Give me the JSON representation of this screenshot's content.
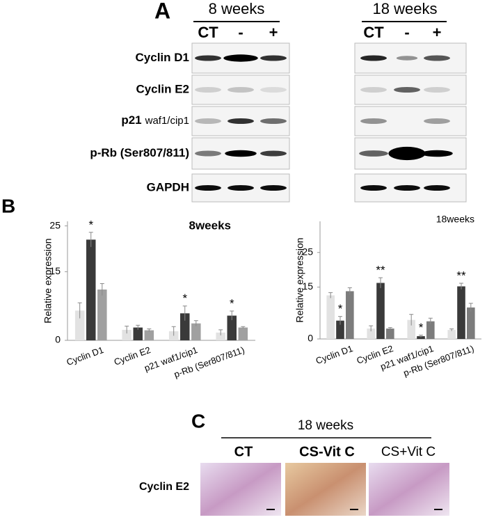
{
  "panel_a": {
    "label": "A",
    "groups": [
      "8 weeks",
      "18 weeks"
    ],
    "lanes": [
      "CT",
      "-",
      "+",
      "CT",
      "-",
      "+"
    ],
    "rows": [
      {
        "label": "Cyclin D1"
      },
      {
        "label": "Cyclin E2"
      },
      {
        "label": "p21",
        "sub": "waf1/cip1"
      },
      {
        "label": "p-Rb (Ser807/811)"
      },
      {
        "label": "GAPDH"
      }
    ]
  },
  "panel_b_label": "B",
  "chart_data": [
    {
      "type": "bar",
      "title": "8weeks",
      "y_label": "Relative expression",
      "categories": [
        "Cyclin D1",
        "Cyclin E2",
        "p21 waf1/cip1",
        "p-Rb (Ser807/811)"
      ],
      "series": [
        {
          "color": "#e2e2e2",
          "values": [
            6.5,
            2.3,
            2.0,
            1.7
          ],
          "errors": [
            1.7,
            0.8,
            1.0,
            0.6
          ]
        },
        {
          "color": "#3a3a3a",
          "values": [
            22.0,
            2.8,
            5.9,
            5.4
          ],
          "errors": [
            1.6,
            0.5,
            1.6,
            1.0
          ]
        },
        {
          "color": "#a0a0a0",
          "values": [
            11.1,
            2.2,
            3.7,
            2.8
          ],
          "errors": [
            1.3,
            0.3,
            0.6,
            0.2
          ]
        }
      ],
      "annotations": [
        {
          "text": "*",
          "series": 1,
          "category": 0
        },
        {
          "text": "*",
          "series": 1,
          "category": 2
        },
        {
          "text": "*",
          "series": 1,
          "category": 3
        }
      ],
      "ylim": [
        0,
        26
      ],
      "yticks": [
        0,
        15,
        25
      ]
    },
    {
      "type": "bar",
      "title": "18weeks",
      "y_label": "Relative expression",
      "categories": [
        "Cyclin D1",
        "Cyclin E2",
        "p21 waf1/cip1",
        "p-Rb (Ser807/811)"
      ],
      "series": [
        {
          "color": "#e2e2e2",
          "values": [
            12.6,
            3.0,
            5.5,
            2.6
          ],
          "errors": [
            0.8,
            0.8,
            1.6,
            0.3
          ]
        },
        {
          "color": "#3a3a3a",
          "values": [
            5.3,
            16.2,
            0.8,
            15.2
          ],
          "errors": [
            1.2,
            1.5,
            0.3,
            0.9
          ]
        },
        {
          "color": "#7c7c7c",
          "values": [
            13.8,
            3.0,
            5.1,
            9.1
          ],
          "errors": [
            1.0,
            0.3,
            0.9,
            1.2
          ]
        }
      ],
      "annotations": [
        {
          "text": "*",
          "series": 1,
          "category": 0
        },
        {
          "text": "**",
          "series": 1,
          "category": 1
        },
        {
          "text": "*",
          "series": 1,
          "category": 2
        },
        {
          "text": "**",
          "series": 1,
          "category": 3
        }
      ],
      "ylim": [
        0,
        34
      ],
      "yticks": [
        0,
        15,
        25
      ]
    }
  ],
  "panel_c": {
    "label": "C",
    "group": "18 weeks",
    "columns": [
      "CT",
      "CS-Vit C",
      "CS+Vit C"
    ],
    "row": "Cyclin E2"
  }
}
